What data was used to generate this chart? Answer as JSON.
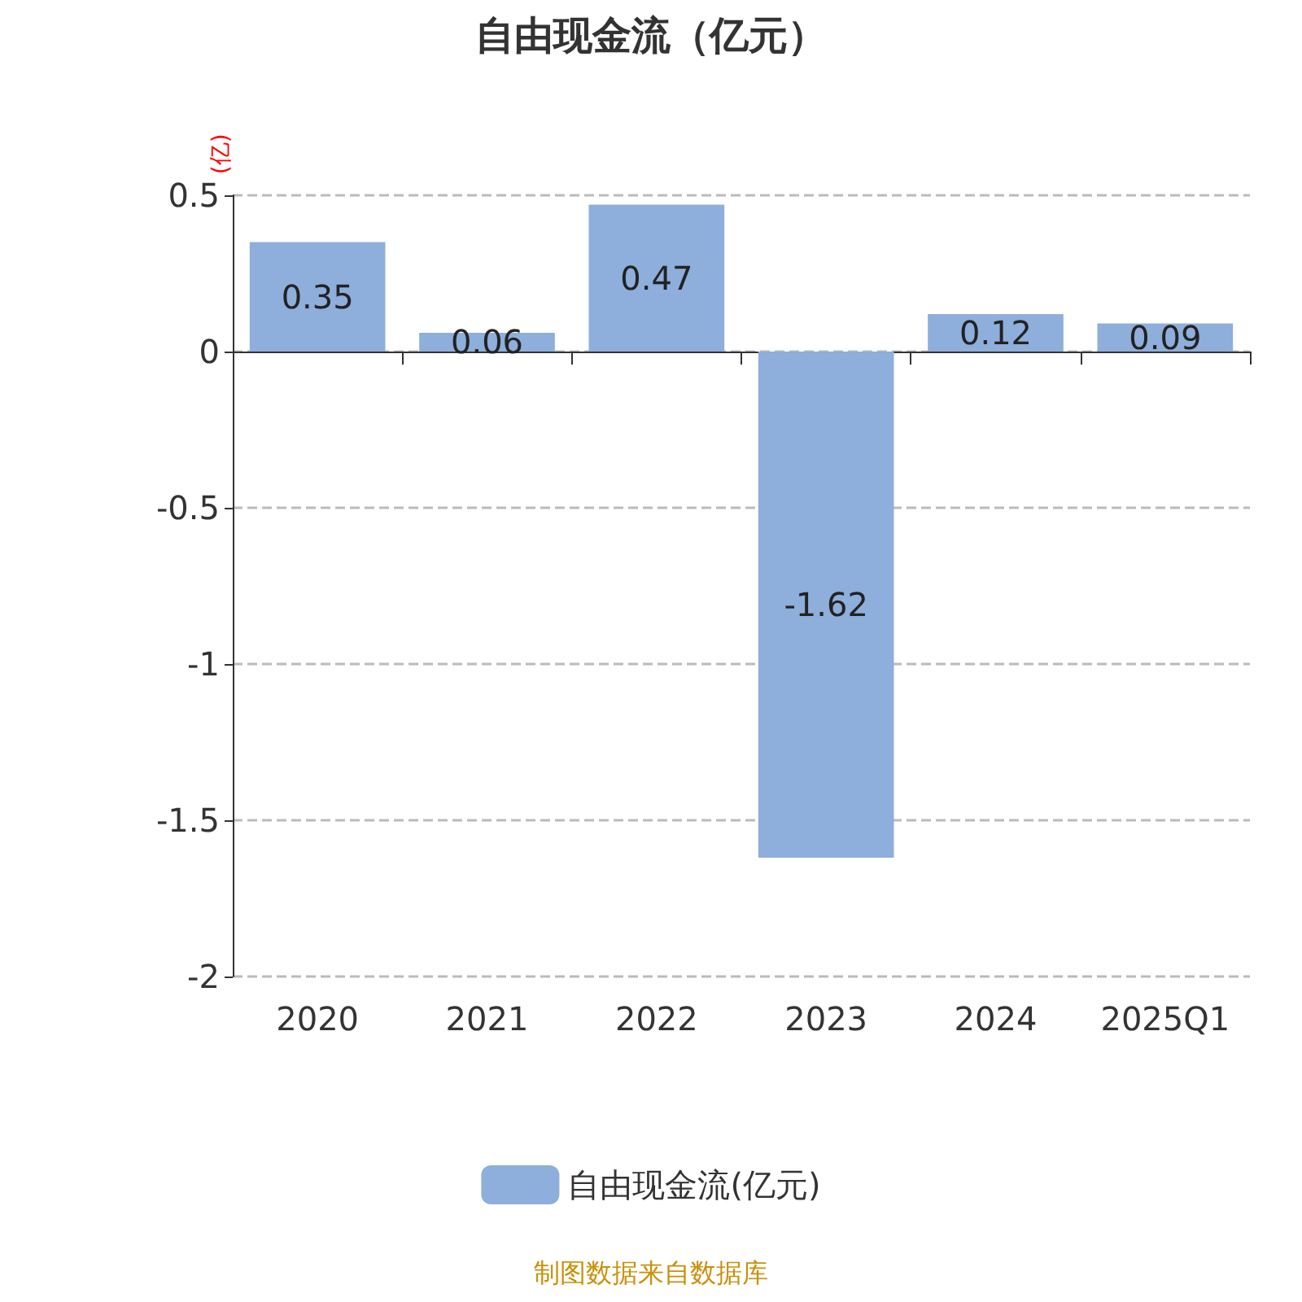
{
  "chart_data": {
    "type": "bar",
    "title": "自由现金流（亿元）",
    "ylabel": "(亿)",
    "categories": [
      "2020",
      "2021",
      "2022",
      "2023",
      "2024",
      "2025Q1"
    ],
    "series": [
      {
        "name": "自由现金流(亿元)",
        "color": "#8eaedb",
        "values": [
          0.35,
          0.06,
          0.47,
          -1.62,
          0.12,
          0.09
        ]
      }
    ],
    "ylim": [
      -2,
      0.5
    ],
    "yticks": [
      -2,
      -1.5,
      -1,
      -0.5,
      0,
      0.5
    ],
    "grid": "y",
    "legend": "bottom",
    "data_labels": true,
    "annotations": [
      "制图数据来自数据库"
    ]
  }
}
